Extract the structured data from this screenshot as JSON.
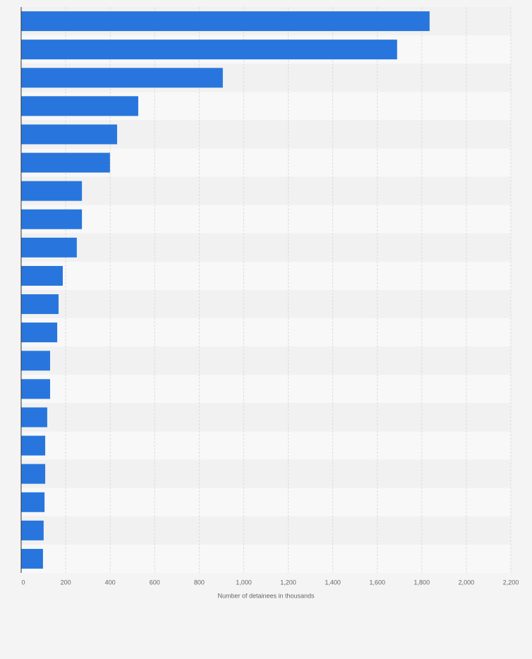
{
  "chart_data": {
    "type": "hbar",
    "x_label": "Number of detainees in thousands",
    "categories": [
      null,
      null,
      null,
      null,
      null,
      null,
      null,
      null,
      null,
      null,
      null,
      null,
      null,
      null,
      null,
      null,
      null,
      null,
      null,
      null
    ],
    "values": [
      1835,
      1689,
      906,
      526,
      431,
      399,
      273,
      273,
      250,
      187,
      168,
      162,
      130,
      130,
      117,
      108,
      108,
      105,
      101,
      98
    ],
    "color": "#2876dd",
    "xlim": [
      0,
      2200
    ],
    "xticks": [
      0,
      200,
      400,
      600,
      800,
      {
        "value": 1000,
        "label": "1,000"
      },
      {
        "value": 1200,
        "label": "1,200"
      },
      {
        "value": 1400,
        "label": "1,400"
      },
      {
        "value": 1600,
        "label": "1,600"
      },
      {
        "value": 1800,
        "label": "1,800"
      },
      {
        "value": 2000,
        "label": "2,000"
      },
      {
        "value": 2200,
        "label": "2,200"
      }
    ],
    "grid": true
  }
}
